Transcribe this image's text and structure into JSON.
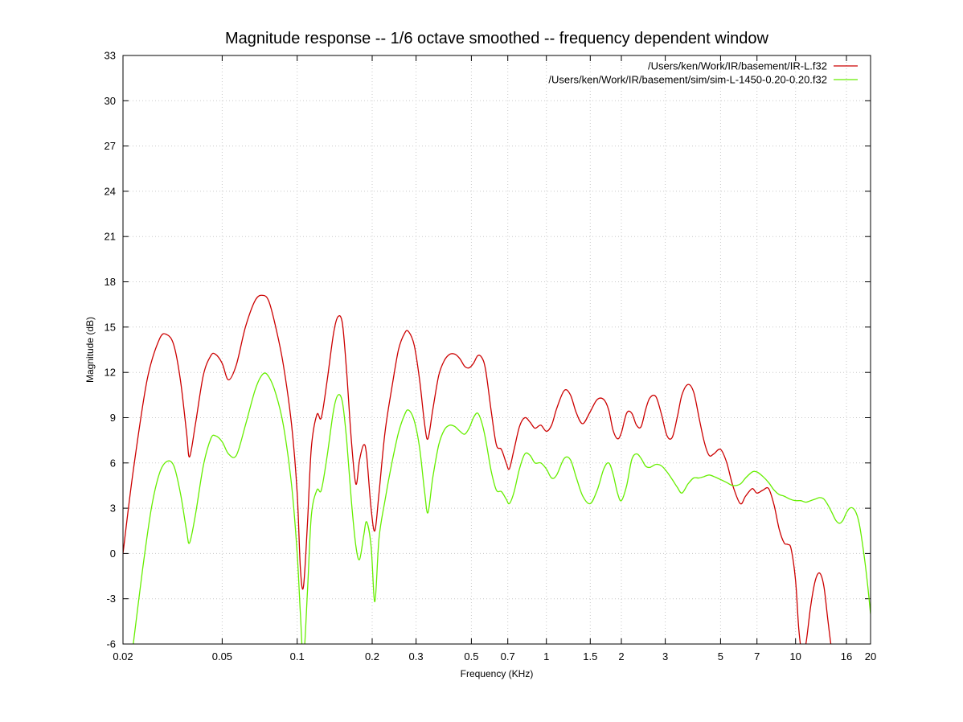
{
  "chart_data": {
    "type": "line",
    "title": "Magnitude response -- 1/6 octave smoothed -- frequency dependent window",
    "xlabel": "Frequency (KHz)",
    "ylabel": "Magnitude (dB)",
    "xscale": "log",
    "xlim": [
      0.02,
      20
    ],
    "ylim": [
      -6,
      33
    ],
    "grid": true,
    "legend_position": "top-right",
    "xticks": [
      0.02,
      0.05,
      0.1,
      0.2,
      0.3,
      0.5,
      0.7,
      1,
      1.5,
      2,
      3,
      5,
      7,
      10,
      16,
      20
    ],
    "xtick_labels": [
      "0.02",
      "0.05",
      "0.1",
      "0.2",
      "0.3",
      "0.5",
      "0.7",
      "1",
      "1.5",
      "2",
      "3",
      "5",
      "7",
      "10",
      "16",
      "20"
    ],
    "yticks": [
      -6,
      -3,
      0,
      3,
      6,
      9,
      12,
      15,
      18,
      21,
      24,
      27,
      30,
      33
    ],
    "ytick_labels": [
      "-6",
      "-3",
      "0",
      "3",
      "6",
      "9",
      "12",
      "15",
      "18",
      "21",
      "24",
      "27",
      "30",
      "33"
    ],
    "series": [
      {
        "name": "/Users/ken/Work/IR/basement/IR-L.f32",
        "color": "#cc0000",
        "x": [
          0.02,
          0.022,
          0.025,
          0.028,
          0.03,
          0.032,
          0.034,
          0.036,
          0.037,
          0.039,
          0.042,
          0.045,
          0.047,
          0.05,
          0.053,
          0.057,
          0.062,
          0.068,
          0.073,
          0.077,
          0.082,
          0.088,
          0.095,
          0.1,
          0.103,
          0.106,
          0.11,
          0.114,
          0.12,
          0.125,
          0.132,
          0.14,
          0.146,
          0.152,
          0.158,
          0.165,
          0.172,
          0.178,
          0.185,
          0.19,
          0.198,
          0.205,
          0.213,
          0.225,
          0.24,
          0.255,
          0.27,
          0.28,
          0.295,
          0.31,
          0.325,
          0.335,
          0.35,
          0.37,
          0.39,
          0.41,
          0.43,
          0.45,
          0.47,
          0.49,
          0.51,
          0.53,
          0.55,
          0.57,
          0.6,
          0.63,
          0.66,
          0.69,
          0.71,
          0.74,
          0.78,
          0.82,
          0.86,
          0.9,
          0.95,
          1.0,
          1.05,
          1.1,
          1.18,
          1.25,
          1.32,
          1.4,
          1.5,
          1.6,
          1.7,
          1.78,
          1.85,
          1.93,
          2.0,
          2.1,
          2.2,
          2.3,
          2.4,
          2.5,
          2.6,
          2.75,
          2.9,
          3.05,
          3.2,
          3.35,
          3.5,
          3.7,
          3.9,
          4.1,
          4.3,
          4.5,
          4.7,
          5.0,
          5.3,
          5.6,
          6.0,
          6.3,
          6.7,
          7.0,
          7.4,
          7.8,
          8.2,
          8.6,
          9.0,
          9.3,
          9.6,
          10.0,
          10.3,
          10.6,
          11.0,
          11.5,
          12.0,
          12.5,
          13.0,
          13.5,
          14.0,
          14.5,
          15.0
        ],
        "y": [
          0,
          5.5,
          11.5,
          14.2,
          14.5,
          13.8,
          11.5,
          8.0,
          6.4,
          8.5,
          11.8,
          13.1,
          13.2,
          12.6,
          11.5,
          12.5,
          15.0,
          16.8,
          17.1,
          16.7,
          15.0,
          12.5,
          8.5,
          4.0,
          -1.0,
          -2.2,
          2.0,
          7.0,
          9.2,
          9.0,
          11.5,
          14.6,
          15.7,
          15.2,
          12.0,
          7.5,
          4.6,
          6.2,
          7.2,
          6.5,
          3.0,
          1.5,
          4.0,
          8.0,
          11.0,
          13.5,
          14.6,
          14.7,
          13.8,
          11.5,
          8.5,
          7.6,
          9.5,
          11.8,
          12.8,
          13.2,
          13.2,
          12.9,
          12.4,
          12.3,
          12.6,
          13.1,
          13.0,
          12.2,
          9.5,
          7.2,
          6.9,
          6.0,
          5.6,
          6.8,
          8.4,
          9.0,
          8.7,
          8.3,
          8.5,
          8.1,
          8.5,
          9.6,
          10.8,
          10.5,
          9.3,
          8.6,
          9.4,
          10.2,
          10.2,
          9.5,
          8.2,
          7.6,
          8.0,
          9.3,
          9.3,
          8.5,
          8.4,
          9.5,
          10.3,
          10.4,
          9.2,
          7.8,
          7.7,
          9.0,
          10.5,
          11.2,
          10.7,
          9.0,
          7.4,
          6.5,
          6.6,
          6.9,
          6.0,
          4.5,
          3.3,
          3.8,
          4.3,
          4.0,
          4.2,
          4.3,
          3.2,
          1.6,
          0.7,
          0.6,
          0.3,
          -1.8,
          -5.0,
          -6.5,
          -6.0,
          -3.5,
          -1.8,
          -1.3,
          -2.2,
          -4.5,
          -6.5,
          -7.5,
          -8.5
        ]
      },
      {
        "name": "/Users/ken/Work/IR/basement/sim/sim-L-1450-0.20-0.20.f32",
        "color": "#66ee00",
        "x": [
          0.022,
          0.024,
          0.026,
          0.028,
          0.03,
          0.032,
          0.034,
          0.036,
          0.037,
          0.039,
          0.042,
          0.045,
          0.047,
          0.05,
          0.053,
          0.057,
          0.062,
          0.068,
          0.073,
          0.077,
          0.082,
          0.088,
          0.095,
          0.1,
          0.103,
          0.106,
          0.11,
          0.114,
          0.12,
          0.125,
          0.132,
          0.14,
          0.146,
          0.152,
          0.158,
          0.165,
          0.172,
          0.178,
          0.185,
          0.19,
          0.198,
          0.205,
          0.213,
          0.225,
          0.24,
          0.255,
          0.27,
          0.28,
          0.295,
          0.31,
          0.325,
          0.335,
          0.35,
          0.37,
          0.39,
          0.41,
          0.43,
          0.45,
          0.47,
          0.49,
          0.51,
          0.53,
          0.55,
          0.57,
          0.6,
          0.63,
          0.66,
          0.69,
          0.71,
          0.74,
          0.78,
          0.82,
          0.86,
          0.9,
          0.95,
          1.0,
          1.05,
          1.1,
          1.18,
          1.25,
          1.32,
          1.4,
          1.5,
          1.6,
          1.7,
          1.78,
          1.85,
          1.93,
          2.0,
          2.1,
          2.2,
          2.3,
          2.4,
          2.5,
          2.6,
          2.75,
          2.9,
          3.05,
          3.2,
          3.35,
          3.5,
          3.7,
          3.9,
          4.1,
          4.3,
          4.5,
          4.7,
          5.0,
          5.3,
          5.6,
          6.0,
          6.3,
          6.7,
          7.0,
          7.4,
          7.8,
          8.2,
          8.6,
          9.0,
          9.5,
          10.0,
          10.5,
          11.0,
          11.5,
          12.0,
          12.5,
          13.0,
          13.5,
          14.0,
          14.5,
          15.0,
          15.5,
          16.0,
          16.5,
          17.0,
          17.5,
          18.0,
          18.5,
          19.0,
          19.5,
          20.0
        ],
        "y": [
          -6.0,
          -1.0,
          3.0,
          5.3,
          6.1,
          5.8,
          4.0,
          1.5,
          0.7,
          2.5,
          5.8,
          7.6,
          7.8,
          7.4,
          6.6,
          6.5,
          8.5,
          10.9,
          11.9,
          11.7,
          10.6,
          8.5,
          4.5,
          0.0,
          -4.0,
          -7.0,
          -2.5,
          2.5,
          4.2,
          4.2,
          6.5,
          9.5,
          10.5,
          10.0,
          7.5,
          3.5,
          0.5,
          -0.4,
          1.2,
          2.1,
          0.5,
          -3.2,
          1.0,
          3.5,
          6.0,
          8.0,
          9.2,
          9.5,
          8.8,
          7.0,
          4.0,
          2.7,
          5.0,
          7.2,
          8.2,
          8.5,
          8.4,
          8.1,
          7.9,
          8.3,
          9.0,
          9.3,
          8.7,
          7.6,
          5.5,
          4.2,
          4.1,
          3.6,
          3.3,
          4.0,
          5.6,
          6.6,
          6.5,
          6.0,
          6.0,
          5.6,
          5.0,
          5.2,
          6.3,
          6.2,
          5.0,
          3.8,
          3.3,
          4.2,
          5.6,
          6.0,
          5.3,
          4.0,
          3.5,
          4.5,
          6.2,
          6.6,
          6.3,
          5.8,
          5.7,
          5.9,
          5.8,
          5.4,
          4.9,
          4.4,
          4.0,
          4.6,
          5.0,
          5.0,
          5.1,
          5.2,
          5.1,
          4.9,
          4.7,
          4.5,
          4.6,
          5.0,
          5.4,
          5.4,
          5.1,
          4.7,
          4.2,
          3.9,
          3.8,
          3.6,
          3.5,
          3.5,
          3.4,
          3.5,
          3.6,
          3.7,
          3.6,
          3.2,
          2.7,
          2.2,
          2.0,
          2.2,
          2.7,
          3.0,
          3.0,
          2.7,
          2.0,
          0.8,
          -0.6,
          -2.2,
          -4.0
        ]
      }
    ]
  }
}
